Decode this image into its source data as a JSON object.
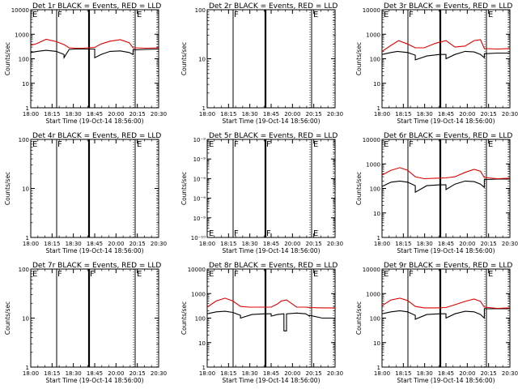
{
  "colors": {
    "background": "#ffffff",
    "axes": "#000000",
    "events": "#000000",
    "lld": "#dd0000"
  },
  "chart_data": [
    {
      "type": "line",
      "title": "Det 1r BLACK = Events, RED = LLD",
      "xlabel": "Start Time (19-Oct-14 18:56:00)",
      "ylabel": "Counts/sec",
      "yscale": "log",
      "ylim": [
        1,
        10000
      ],
      "yticks": [
        "1",
        "10",
        "100",
        "1000",
        "10000"
      ],
      "xticks": [
        "18:00",
        "18:15",
        "18:30",
        "18:45",
        "20:00",
        "20:15",
        "20:30"
      ],
      "markers": [
        "E",
        "F",
        "E"
      ],
      "series": [
        {
          "name": "Events",
          "color": "#000000",
          "x": [
            0.0,
            0.05,
            0.12,
            0.2,
            0.26,
            0.26,
            0.3,
            0.35,
            0.4,
            0.45,
            0.5,
            0.5,
            0.55,
            0.62,
            0.7,
            0.77,
            0.8,
            0.8,
            0.9,
            1.0
          ],
          "values": [
            180,
            200,
            220,
            200,
            150,
            110,
            240,
            250,
            250,
            250,
            250,
            110,
            150,
            200,
            210,
            180,
            150,
            230,
            240,
            250
          ]
        },
        {
          "name": "LLD",
          "color": "#dd0000",
          "x": [
            0.0,
            0.05,
            0.12,
            0.2,
            0.26,
            0.3,
            0.35,
            0.4,
            0.45,
            0.5,
            0.55,
            0.62,
            0.7,
            0.77,
            0.8,
            0.9,
            1.0
          ],
          "values": [
            350,
            420,
            620,
            500,
            380,
            280,
            270,
            270,
            280,
            290,
            400,
            520,
            600,
            450,
            280,
            270,
            280
          ]
        }
      ]
    },
    {
      "type": "line",
      "title": "Det 2r BLACK = Events, RED = LLD",
      "xlabel": "Start Time (19-Oct-14 18:56:00)",
      "ylabel": "Counts/sec",
      "yscale": "log",
      "ylim": [
        1,
        100
      ],
      "yticks": [
        "1",
        "10",
        "100"
      ],
      "xticks": [
        "18:00",
        "18:15",
        "18:30",
        "18:45",
        "20:00",
        "20:15",
        "20:30"
      ],
      "markers": [
        "F",
        "E"
      ],
      "series": []
    },
    {
      "type": "line",
      "title": "Det 3r BLACK = Events, RED = LLD",
      "xlabel": "Start Time (19-Oct-14 18:56:00)",
      "ylabel": "Counts/sec",
      "yscale": "log",
      "ylim": [
        1,
        10000
      ],
      "yticks": [
        "1",
        "10",
        "100",
        "1000",
        "10000"
      ],
      "xticks": [
        "18:00",
        "18:15",
        "18:30",
        "18:45",
        "20:00",
        "20:15",
        "20:30"
      ],
      "markers": [
        "E",
        "F",
        "E"
      ],
      "series": [
        {
          "name": "Events",
          "color": "#000000",
          "x": [
            0.0,
            0.07,
            0.12,
            0.2,
            0.26,
            0.26,
            0.35,
            0.45,
            0.5,
            0.5,
            0.57,
            0.65,
            0.72,
            0.77,
            0.8,
            0.8,
            0.9,
            1.0
          ],
          "values": [
            150,
            180,
            200,
            180,
            140,
            90,
            130,
            150,
            150,
            100,
            150,
            200,
            190,
            150,
            110,
            160,
            170,
            170
          ]
        },
        {
          "name": "LLD",
          "color": "#dd0000",
          "x": [
            0.0,
            0.07,
            0.13,
            0.2,
            0.26,
            0.33,
            0.42,
            0.5,
            0.57,
            0.65,
            0.72,
            0.77,
            0.8,
            0.9,
            1.0
          ],
          "values": [
            200,
            350,
            550,
            400,
            280,
            280,
            430,
            550,
            300,
            330,
            550,
            600,
            260,
            250,
            260
          ]
        }
      ]
    },
    {
      "type": "line",
      "title": "Det 4r BLACK = Events, RED = LLD",
      "xlabel": "Start Time (19-Oct-14 18:56:00)",
      "ylabel": "Counts/sec",
      "yscale": "log",
      "ylim": [
        1,
        100
      ],
      "yticks": [
        "1",
        "10",
        "100"
      ],
      "xticks": [
        "18:00",
        "18:15",
        "18:30",
        "18:45",
        "20:00",
        "20:15",
        "20:30"
      ],
      "markers": [
        "E",
        "F",
        "E"
      ],
      "series": []
    },
    {
      "type": "line",
      "title": "Det 5r BLACK = Events, RED = LLD",
      "xlabel": "Start Time (19-Oct-14 18:56:00)",
      "ylabel": "Counts/sec",
      "yscale": "log",
      "ylim": [
        1e-10,
        1e-08
      ],
      "yticks": [
        "10⁻¹⁰",
        "10⁻⁹",
        "10⁻⁹",
        "10⁻⁹",
        "10⁻⁹",
        "10⁻⁹"
      ],
      "xticks": [
        "18:00",
        "18:15",
        "18:30",
        "18:45",
        "20:00",
        "20:15",
        "20:30"
      ],
      "markers": [
        "E",
        "F",
        "F",
        "E"
      ],
      "series": []
    },
    {
      "type": "line",
      "title": "Det 6r BLACK = Events, RED = LLD",
      "xlabel": "Start Time (19-Oct-14 18:56:00)",
      "ylabel": "Counts/sec",
      "yscale": "log",
      "ylim": [
        1,
        10000
      ],
      "yticks": [
        "1",
        "10",
        "100",
        "1000",
        "10000"
      ],
      "xticks": [
        "18:00",
        "18:15",
        "18:30",
        "18:45",
        "20:00",
        "20:15",
        "20:30"
      ],
      "markers": [
        "E",
        "F",
        "E"
      ],
      "series": [
        {
          "name": "Events",
          "color": "#000000",
          "x": [
            0.0,
            0.07,
            0.14,
            0.2,
            0.26,
            0.26,
            0.35,
            0.45,
            0.5,
            0.5,
            0.57,
            0.65,
            0.72,
            0.77,
            0.8,
            0.8,
            0.9,
            1.0
          ],
          "values": [
            120,
            180,
            200,
            180,
            130,
            70,
            130,
            140,
            140,
            90,
            150,
            200,
            190,
            150,
            110,
            230,
            240,
            240
          ]
        },
        {
          "name": "LLD",
          "color": "#dd0000",
          "x": [
            0.0,
            0.07,
            0.14,
            0.2,
            0.26,
            0.33,
            0.42,
            0.5,
            0.57,
            0.65,
            0.72,
            0.77,
            0.8,
            0.9,
            1.0
          ],
          "values": [
            350,
            550,
            700,
            550,
            300,
            250,
            260,
            270,
            300,
            450,
            600,
            500,
            280,
            250,
            260
          ]
        }
      ]
    },
    {
      "type": "line",
      "title": "Det 7r BLACK = Events, RED = LLD",
      "xlabel": "Start Time (19-Oct-14 18:56:00)",
      "ylabel": "Counts/sec",
      "yscale": "log",
      "ylim": [
        1,
        100
      ],
      "yticks": [
        "1",
        "10",
        "100"
      ],
      "xticks": [
        "18:00",
        "18:15",
        "18:30",
        "18:45",
        "20:00",
        "20:15",
        "20:30"
      ],
      "markers": [
        "E",
        "F",
        "F",
        "E"
      ],
      "series": []
    },
    {
      "type": "line",
      "title": "Det 8r BLACK = Events, RED = LLD",
      "xlabel": "Start Time (19-Oct-14 18:56:00)",
      "ylabel": "Counts/sec",
      "yscale": "log",
      "ylim": [
        1,
        10000
      ],
      "yticks": [
        "1",
        "10",
        "100",
        "1000",
        "10000"
      ],
      "xticks": [
        "18:00",
        "18:15",
        "18:30",
        "18:45",
        "20:00",
        "20:15",
        "20:30"
      ],
      "markers": [
        "E",
        "F",
        "E"
      ],
      "series": [
        {
          "name": "Events",
          "color": "#000000",
          "x": [
            0.0,
            0.07,
            0.14,
            0.2,
            0.26,
            0.26,
            0.35,
            0.45,
            0.5,
            0.5,
            0.55,
            0.6,
            0.6,
            0.62,
            0.62,
            0.7,
            0.77,
            0.8,
            0.8,
            0.9,
            1.0
          ],
          "values": [
            150,
            180,
            190,
            170,
            130,
            100,
            140,
            150,
            150,
            120,
            140,
            150,
            30,
            30,
            150,
            160,
            150,
            120,
            130,
            100,
            100
          ]
        },
        {
          "name": "LLD",
          "color": "#dd0000",
          "x": [
            0.0,
            0.07,
            0.14,
            0.2,
            0.26,
            0.33,
            0.42,
            0.5,
            0.55,
            0.58,
            0.62,
            0.7,
            0.77,
            0.8,
            0.9,
            1.0
          ],
          "values": [
            280,
            500,
            650,
            500,
            300,
            280,
            280,
            280,
            380,
            500,
            550,
            280,
            280,
            270,
            260,
            260
          ]
        }
      ]
    },
    {
      "type": "line",
      "title": "Det 9r BLACK = Events, RED = LLD",
      "xlabel": "Start Time (19-Oct-14 18:56:00)",
      "ylabel": "Counts/sec",
      "yscale": "log",
      "ylim": [
        1,
        10000
      ],
      "yticks": [
        "1",
        "10",
        "100",
        "1000",
        "10000"
      ],
      "xticks": [
        "18:00",
        "18:15",
        "18:30",
        "18:45",
        "20:00",
        "20:15",
        "20:30"
      ],
      "markers": [
        "E",
        "F",
        "E"
      ],
      "series": [
        {
          "name": "Events",
          "color": "#000000",
          "x": [
            0.0,
            0.07,
            0.14,
            0.2,
            0.26,
            0.26,
            0.35,
            0.45,
            0.5,
            0.5,
            0.57,
            0.65,
            0.72,
            0.77,
            0.8,
            0.8,
            0.9,
            1.0
          ],
          "values": [
            150,
            180,
            200,
            180,
            130,
            90,
            140,
            150,
            150,
            100,
            150,
            190,
            180,
            140,
            100,
            240,
            240,
            240
          ]
        },
        {
          "name": "LLD",
          "color": "#dd0000",
          "x": [
            0.0,
            0.07,
            0.14,
            0.2,
            0.26,
            0.33,
            0.42,
            0.5,
            0.57,
            0.65,
            0.72,
            0.77,
            0.8,
            0.9,
            1.0
          ],
          "values": [
            320,
            550,
            650,
            520,
            300,
            260,
            260,
            270,
            350,
            480,
            600,
            480,
            280,
            250,
            260
          ]
        }
      ]
    }
  ]
}
